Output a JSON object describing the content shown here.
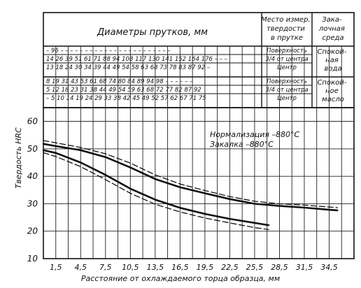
{
  "chart_data": {
    "type": "line",
    "title": "",
    "xlabel": "Расстояние от охлаждаемого торца образца, мм",
    "ylabel": "Твердость HRC",
    "x_ticks": [
      "1,5",
      "4,5",
      "7,5",
      "10,5",
      "13,5",
      "16,5",
      "19,5",
      "22,5",
      "25,5",
      "28,5",
      "31,5",
      "34,5"
    ],
    "x_tick_values": [
      1.5,
      4.5,
      7.5,
      10.5,
      13.5,
      16.5,
      19.5,
      22.5,
      25.5,
      28.5,
      31.5,
      34.5
    ],
    "y_ticks": [
      10,
      20,
      30,
      40,
      50,
      60
    ],
    "xlim": [
      0,
      37.5
    ],
    "ylim": [
      10,
      65
    ],
    "grid": true,
    "annotation": [
      "Нормализация –880°С",
      "Закалка        –880°С"
    ],
    "series": [
      {
        "style": "solid",
        "x": [
          0,
          1.5,
          4.5,
          7.5,
          10.5,
          13.5,
          16.5,
          19.5,
          22.5,
          25.5,
          28.5,
          31.5,
          34.5,
          35.5
        ],
        "values": [
          51.8,
          51,
          49.5,
          47,
          43.2,
          39,
          36,
          33.8,
          31.7,
          30,
          29.2,
          28.6,
          27.8,
          27.6
        ]
      },
      {
        "style": "dashed",
        "x": [
          0,
          1.5,
          4.5,
          7.5,
          10.5,
          13.5,
          16.5,
          19.5,
          22.5,
          25.5,
          28.5,
          31.5,
          34.5,
          35.5
        ],
        "values": [
          53,
          52.2,
          50.5,
          48.2,
          44.8,
          40.5,
          37.2,
          34.8,
          32.6,
          30.9,
          30,
          29.5,
          28.8,
          28.6
        ]
      },
      {
        "style": "solid",
        "x": [
          0,
          1.5,
          4.5,
          7.5,
          10.5,
          13.5,
          16.5,
          19.5,
          22.5,
          25.5,
          27.2
        ],
        "values": [
          49.5,
          48.5,
          45,
          40.5,
          35.5,
          31.5,
          28.5,
          26.3,
          24.5,
          23,
          22.2
        ]
      },
      {
        "style": "dashed",
        "x": [
          0,
          1.5,
          4.5,
          7.5,
          10.5,
          13.5,
          16.5,
          19.5,
          22.5,
          25.5,
          27.2
        ],
        "values": [
          48.6,
          47.2,
          43.5,
          38.8,
          33.8,
          29.8,
          27,
          24.8,
          23,
          21.3,
          20.6
        ]
      }
    ]
  },
  "header": {
    "diameters_title": "Диаметры прутков, мм",
    "col_place_title": [
      "Место измер.",
      "твердости",
      "в прутке"
    ],
    "col_medium_title": [
      "Зака-",
      "лочная",
      "среда"
    ],
    "water": {
      "rows": [
        "– 96 – – – – – – – – – – – – – – – – – – – – – – –",
        "14 26 39 51 61 71 88 94 108 117 130 141 152 164 176 – – –",
        "13 18 24 30 34 39 44 49 54 58 63 68 73 78 83 87 92 –"
      ],
      "places": [
        "Поверхность",
        "3/4 от центра",
        "Центр"
      ],
      "medium": [
        "Спокой-",
        "ная",
        "вода"
      ]
    },
    "oil": {
      "rows": [
        "8 19 31 43 53 61 68 74 80 84 89 94 98 – – – – – –",
        "5 12 18 23 31 38 44 49 54 59 63 68 72 77 82 87 92",
        "– 5 10 14 19 24 29 33 38 42 45 49 52 57 62 67 71 75"
      ],
      "places": [
        "Поверхность",
        "3/4 от центра",
        "Центр"
      ],
      "medium": [
        "Спокой-",
        "ное",
        "масло"
      ]
    }
  }
}
